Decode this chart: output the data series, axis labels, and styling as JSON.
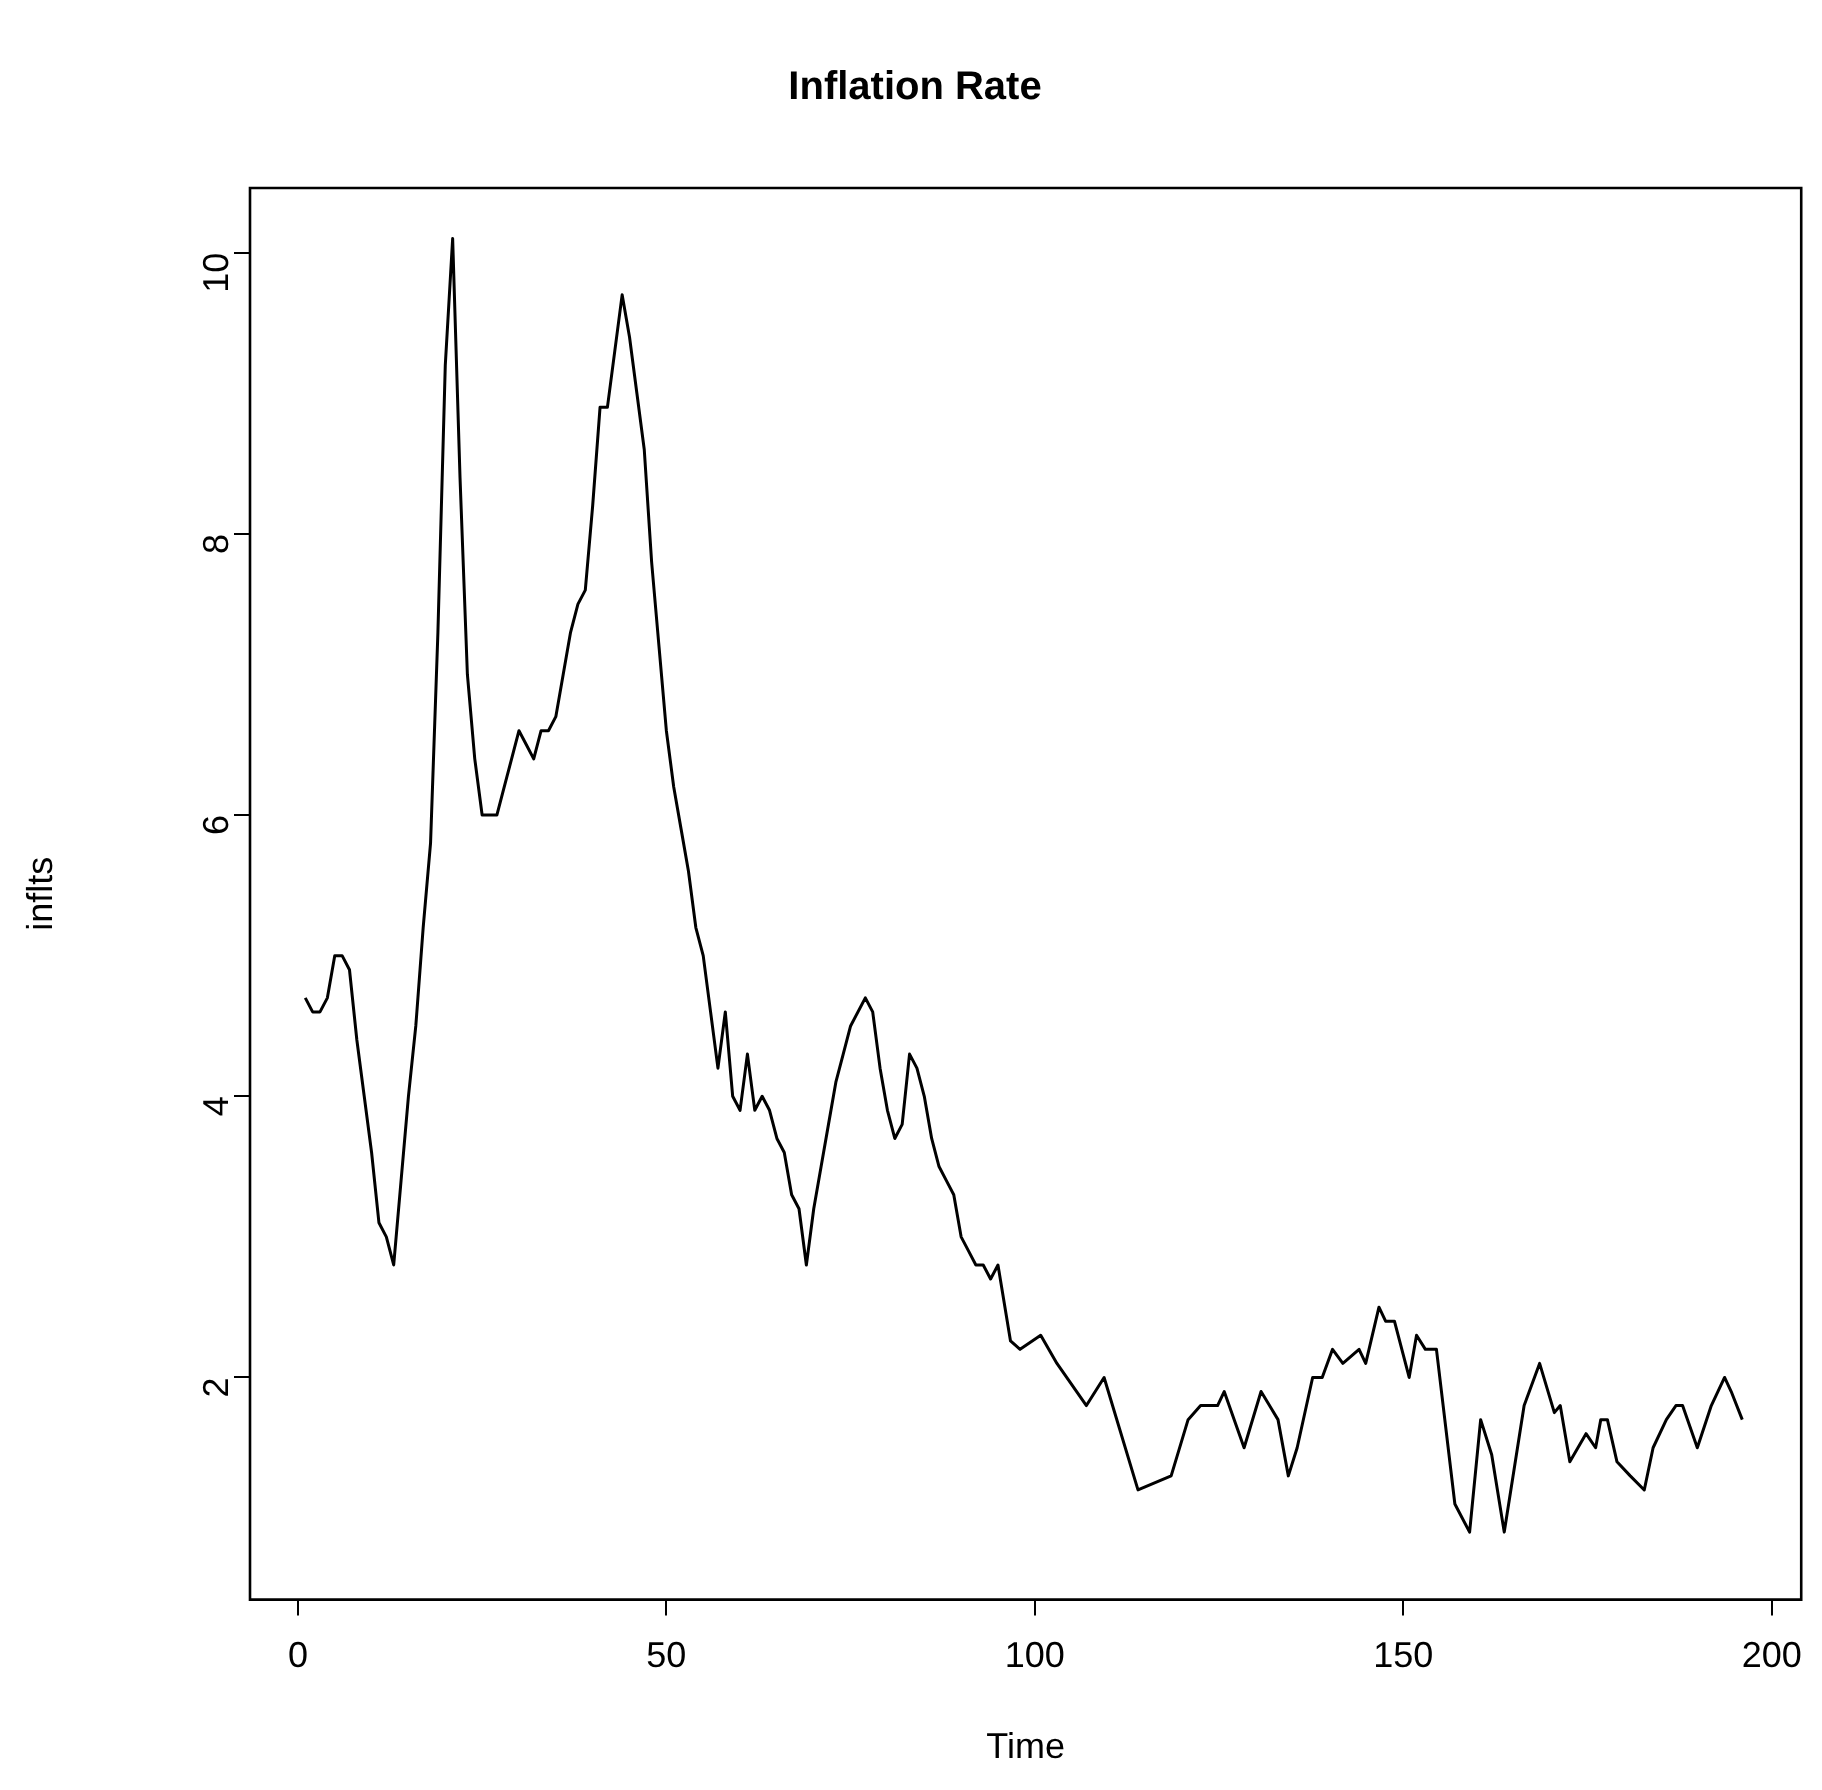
{
  "chart_data": {
    "type": "line",
    "title": "Inflation Rate",
    "xlabel": "Time",
    "ylabel": "inflts",
    "x": [
      1,
      2,
      3,
      4,
      5,
      6,
      7,
      8,
      9,
      10,
      11,
      12,
      13,
      14,
      15,
      16,
      17,
      18,
      19,
      20,
      21,
      22,
      23,
      24,
      25,
      27,
      28,
      29,
      30,
      31,
      32,
      33,
      34,
      35,
      36,
      37,
      38,
      39,
      40,
      41,
      42,
      43,
      44,
      45,
      46,
      47,
      48,
      49,
      50,
      51,
      52,
      53,
      54,
      55,
      56,
      57,
      58,
      59,
      60,
      61,
      62,
      63,
      64,
      65,
      66,
      67,
      68,
      69,
      70,
      71,
      72,
      73,
      74,
      75,
      77,
      78,
      79,
      80,
      81,
      82,
      83,
      84,
      85,
      86,
      87,
      88,
      89,
      90,
      91,
      92,
      93,
      94,
      95,
      96.7,
      98,
      100.8,
      103,
      107,
      109.4,
      114,
      118.5,
      120.8,
      122.5,
      124.8,
      125.7,
      128.4,
      130.7,
      133,
      134.4,
      135.6,
      137.7,
      139,
      140.4,
      141.8,
      144,
      144.9,
      146.7,
      147.6,
      148.8,
      150.8,
      151.8,
      153,
      154.5,
      157,
      159,
      160.5,
      162,
      163.7,
      166.4,
      168.5,
      170.5,
      171.3,
      172.6,
      174.8,
      176.1,
      176.8,
      177.7,
      179,
      180.8,
      182.7,
      183.9,
      185.7,
      187,
      187.9,
      189.9,
      191.8,
      193.6,
      194.5,
      196
    ],
    "values": [
      4.7,
      4.6,
      4.6,
      4.7,
      5.0,
      5.0,
      4.9,
      4.4,
      4.0,
      3.6,
      3.1,
      3.0,
      2.8,
      3.4,
      4.0,
      4.5,
      5.2,
      5.8,
      7.3,
      9.2,
      10.1,
      8.4,
      7.0,
      6.4,
      6.0,
      6.0,
      6.2,
      6.4,
      6.6,
      6.5,
      6.4,
      6.6,
      6.6,
      6.7,
      7.0,
      7.3,
      7.5,
      7.6,
      8.2,
      8.9,
      8.9,
      9.3,
      9.7,
      9.4,
      9.0,
      8.6,
      7.8,
      7.2,
      6.6,
      6.2,
      5.9,
      5.6,
      5.2,
      5.0,
      4.6,
      4.2,
      4.6,
      4.0,
      3.9,
      4.3,
      3.9,
      4.0,
      3.9,
      3.7,
      3.6,
      3.3,
      3.2,
      2.8,
      3.2,
      3.5,
      3.8,
      4.1,
      4.3,
      4.5,
      4.7,
      4.6,
      4.2,
      3.9,
      3.7,
      3.8,
      4.3,
      4.2,
      4.0,
      3.7,
      3.5,
      3.4,
      3.3,
      3.0,
      2.9,
      2.8,
      2.8,
      2.7,
      2.8,
      2.26,
      2.2,
      2.3,
      2.1,
      1.8,
      2.0,
      1.2,
      1.3,
      1.7,
      1.8,
      1.8,
      1.9,
      1.5,
      1.9,
      1.7,
      1.3,
      1.5,
      2.0,
      2.0,
      2.2,
      2.1,
      2.2,
      2.1,
      2.5,
      2.4,
      2.4,
      2.0,
      2.3,
      2.2,
      2.2,
      1.1,
      0.9,
      1.7,
      1.45,
      0.9,
      1.8,
      2.1,
      1.75,
      1.8,
      1.4,
      1.6,
      1.5,
      1.7,
      1.7,
      1.4,
      1.3,
      1.2,
      1.5,
      1.7,
      1.8,
      1.8,
      1.5,
      1.8,
      2.0,
      1.9,
      1.7
    ],
    "color": "#000000",
    "xlim": [
      -6.5,
      204
    ],
    "xticks": [
      0,
      50,
      100,
      150,
      200
    ],
    "ylim": [
      0.42,
      10.46
    ],
    "yticks": [
      2,
      4,
      6,
      8,
      10
    ],
    "grid": false,
    "legend": false,
    "marker": "none",
    "line_style": "solid"
  }
}
